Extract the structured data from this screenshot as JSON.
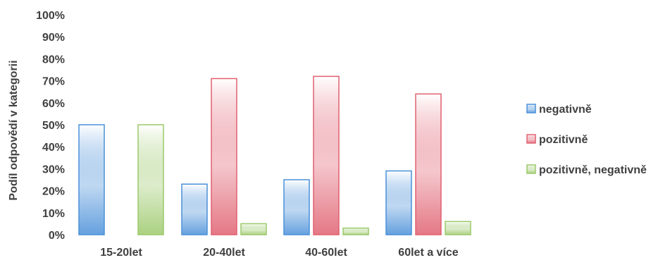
{
  "chart_data": {
    "type": "bar",
    "ylabel": "Podíl odpovědí v kategorii",
    "ylim": [
      0,
      100
    ],
    "yticks": [
      "0%",
      "10%",
      "20%",
      "30%",
      "40%",
      "50%",
      "60%",
      "70%",
      "80%",
      "90%",
      "100%"
    ],
    "grid": false,
    "legend_position": "right",
    "categories": [
      "15-20let",
      "20-40let",
      "40-60let",
      "60let a více"
    ],
    "series": [
      {
        "name": "negativně",
        "values": [
          50,
          23,
          25,
          29
        ],
        "color": "#4a90d9"
      },
      {
        "name": "pozitivně",
        "values": [
          0,
          71,
          72,
          64
        ],
        "color": "#e06070"
      },
      {
        "name": "pozitivně, negativně",
        "values": [
          50,
          5,
          3,
          6
        ],
        "color": "#9cc96b"
      }
    ]
  }
}
